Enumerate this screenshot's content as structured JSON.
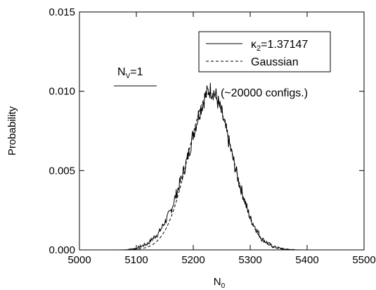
{
  "chart_data": {
    "type": "line",
    "title": "",
    "xlabel_main": "N",
    "xlabel_sub": "0",
    "ylabel": "Probability",
    "xlim": [
      5000,
      5500
    ],
    "ylim": [
      0,
      0.015
    ],
    "xticks": [
      "5000",
      "5100",
      "5200",
      "5300",
      "5400",
      "5500"
    ],
    "yticks": [
      "0.000",
      "0.005",
      "0.010",
      "0.015"
    ],
    "grid": false,
    "legend_position": "top-right",
    "series": [
      {
        "legend_main": "κ",
        "legend_sub": "2",
        "legend_rest": "=1.37147",
        "style": "solid",
        "x": [
          5080,
          5100,
          5120,
          5140,
          5160,
          5180,
          5190,
          5200,
          5210,
          5220,
          5228,
          5235,
          5240,
          5250,
          5260,
          5270,
          5280,
          5300,
          5320,
          5340,
          5360,
          5380
        ],
        "y": [
          0.0,
          0.0001,
          0.0004,
          0.0011,
          0.0024,
          0.0046,
          0.0058,
          0.0073,
          0.0086,
          0.0096,
          0.0101,
          0.01,
          0.0097,
          0.0086,
          0.0072,
          0.0057,
          0.0043,
          0.002,
          0.0007,
          0.0002,
          5e-05,
          0.0
        ]
      },
      {
        "legend_main": "Gaussian",
        "style": "dashed",
        "mean": 5230,
        "sigma": 39,
        "peak": 0.0099
      }
    ],
    "annotations": {
      "nv_main": "N",
      "nv_sub": "V",
      "nv_rest": "=1",
      "configs": "(~20000 configs.)"
    }
  }
}
